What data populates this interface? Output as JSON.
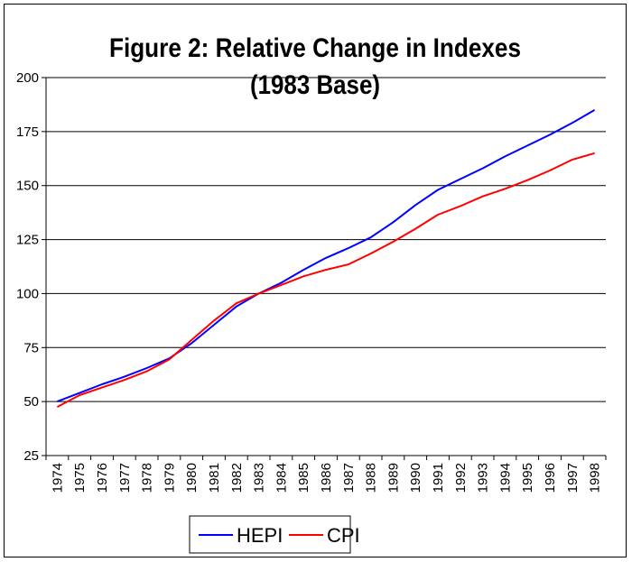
{
  "chart_data": {
    "type": "line",
    "title": "Figure 2: Relative Change in Indexes",
    "subtitle": "(1983 Base)",
    "xlabel": "",
    "ylabel": "",
    "x": [
      "1974",
      "1975",
      "1976",
      "1977",
      "1978",
      "1979",
      "1980",
      "1981",
      "1982",
      "1983",
      "1984",
      "1985",
      "1986",
      "1987",
      "1988",
      "1989",
      "1990",
      "1991",
      "1992",
      "1993",
      "1994",
      "1995",
      "1996",
      "1997",
      "1998"
    ],
    "ylim": [
      25,
      200
    ],
    "yticks": [
      "25",
      "50",
      "75",
      "100",
      "125",
      "150",
      "175",
      "200"
    ],
    "grid": true,
    "legend_position": "bottom",
    "series": [
      {
        "name": "HEPI",
        "color": "#0000ff",
        "values": [
          50,
          54,
          58,
          61.5,
          65.5,
          70,
          77,
          85.5,
          94,
          100,
          105,
          111,
          116.5,
          121,
          126,
          133,
          141,
          148,
          153,
          158,
          163.5,
          168.5,
          173.5,
          179,
          185
        ]
      },
      {
        "name": "CPI",
        "color": "#ff0000",
        "values": [
          47.5,
          53,
          56.5,
          60,
          64,
          69.5,
          78.5,
          87.5,
          95.5,
          100,
          104,
          108,
          111,
          113.5,
          118.5,
          124,
          130,
          136.5,
          140.5,
          145,
          148.5,
          152.5,
          157,
          162,
          165
        ]
      }
    ]
  }
}
